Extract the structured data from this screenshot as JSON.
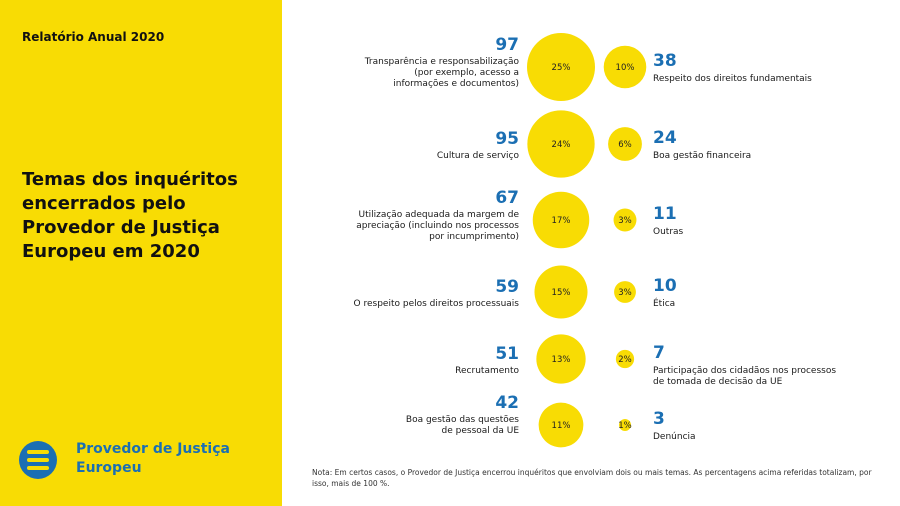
{
  "header": {
    "report_label": "Relatório Anual 2020",
    "title": "Temas dos inquéritos encerrados pelo Provedor de Justiça Europeu em 2020"
  },
  "logo": {
    "name": "Provedor de Justiça Europeu"
  },
  "footnote": "Nota: Em certos casos, o Provedor de Justiça encerrou inquéritos que envolviam dois ou mais temas. As percentagens acima referidas totalizam, por isso, mais de 100 %.",
  "colors": {
    "bubble": "#f8dc04",
    "number": "#1b6fb3"
  },
  "chart_data": {
    "type": "bubble",
    "left_column": [
      {
        "value": 97,
        "percent": "25%",
        "label": [
          "Transparência e responsabilização",
          "(por exemplo, acesso a",
          "informações e documentos)"
        ]
      },
      {
        "value": 95,
        "percent": "24%",
        "label": [
          "Cultura de serviço"
        ]
      },
      {
        "value": 67,
        "percent": "17%",
        "label": [
          "Utilização adequada da margem de",
          "apreciação (incluindo nos processos",
          "por incumprimento)"
        ]
      },
      {
        "value": 59,
        "percent": "15%",
        "label": [
          "O respeito pelos direitos processuais"
        ]
      },
      {
        "value": 51,
        "percent": "13%",
        "label": [
          "Recrutamento"
        ]
      },
      {
        "value": 42,
        "percent": "11%",
        "label": [
          "Boa gestão das questões",
          "de pessoal da UE"
        ]
      }
    ],
    "right_column": [
      {
        "value": 38,
        "percent": "10%",
        "label": [
          "Respeito dos direitos fundamentais"
        ]
      },
      {
        "value": 24,
        "percent": "6%",
        "label": [
          "Boa gestão financeira"
        ]
      },
      {
        "value": 11,
        "percent": "3%",
        "label": [
          "Outras"
        ]
      },
      {
        "value": 10,
        "percent": "3%",
        "label": [
          "Ética"
        ]
      },
      {
        "value": 7,
        "percent": "2%",
        "label": [
          "Participação dos cidadãos nos processos",
          "de tomada de decisão da UE"
        ]
      },
      {
        "value": 3,
        "percent": "1%",
        "label": [
          "Denúncia"
        ]
      }
    ]
  }
}
